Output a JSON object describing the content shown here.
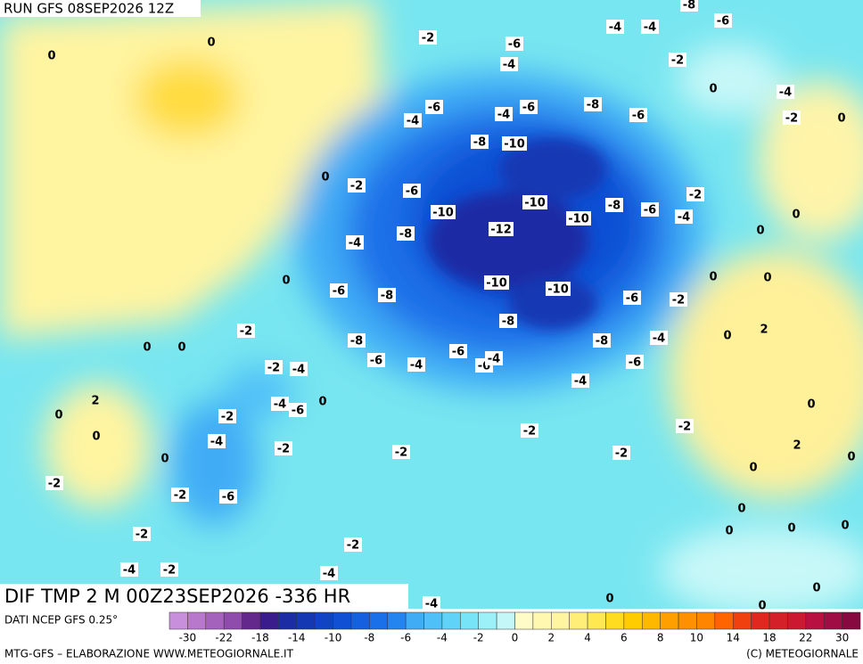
{
  "header": {
    "run": "RUN GFS 08SEP2026 12Z"
  },
  "map": {
    "title": "DIF TMP 2 M 00Z23SEP2026 -336 HR",
    "contour_labels": [
      "0",
      "0",
      "-2",
      "-6",
      "-4",
      "-4",
      "-4",
      "-6",
      "-8",
      "-2",
      "0",
      "-4",
      "-2",
      "0",
      "-6",
      "-4",
      "-4",
      "-6",
      "-8",
      "-6",
      "-8",
      "-10",
      "0",
      "-2",
      "-6",
      "-10",
      "-10",
      "-10",
      "-8",
      "-6",
      "-2",
      "-4",
      "0",
      "-8",
      "-12",
      "-4",
      "0",
      "0",
      "-6",
      "-8",
      "-10",
      "-10",
      "-6",
      "-2",
      "0",
      "0",
      "-8",
      "-2",
      "-8",
      "-8",
      "-4",
      "0",
      "2",
      "0",
      "0",
      "-6",
      "-4",
      "-6",
      "-6",
      "-4",
      "-6",
      "-2",
      "-4",
      "-4",
      "-4",
      "-6",
      "0",
      "2",
      "-2",
      "0",
      "0",
      "0",
      "-2",
      "-2",
      "-4",
      "-2",
      "-2",
      "-2",
      "0",
      "2",
      "0",
      "0",
      "-2",
      "-2",
      "-6",
      "0",
      "-2",
      "0",
      "-2",
      "0",
      "0",
      "-4",
      "-2",
      "-4",
      "0",
      "0",
      "-4",
      "0"
    ]
  },
  "legend": {
    "source": "DATI NCEP GFS 0.25°",
    "colors": [
      "#c890dc",
      "#b878cc",
      "#a462bc",
      "#904cac",
      "#64288c",
      "#3a1c8c",
      "#1c2ca4",
      "#1438b4",
      "#1044c4",
      "#1050d4",
      "#1460e0",
      "#1a70e8",
      "#2484f0",
      "#40acf6",
      "#50c0f8",
      "#60d4f8",
      "#78e4f8",
      "#9cf0f8",
      "#c4f8f8",
      "#fffcc8",
      "#fff8b0",
      "#fff4a0",
      "#ffee78",
      "#ffe850",
      "#ffdc20",
      "#ffcc00",
      "#ffb800",
      "#ffa000",
      "#ff9000",
      "#ff8400",
      "#ff6400",
      "#f04010",
      "#e02820",
      "#d42028",
      "#cc1830",
      "#b81040",
      "#a00c44",
      "#880840"
    ],
    "labels": [
      "-30",
      "-22",
      "-18",
      "-14",
      "-10",
      "-8",
      "-6",
      "-4",
      "-2",
      "0",
      "2",
      "4",
      "6",
      "8",
      "10",
      "14",
      "18",
      "22",
      "30"
    ]
  },
  "footer": {
    "left": "MTG-GFS – ELABORAZIONE WWW.METEOGIORNALE.IT",
    "right": "(C) METEOGIORNALE"
  }
}
